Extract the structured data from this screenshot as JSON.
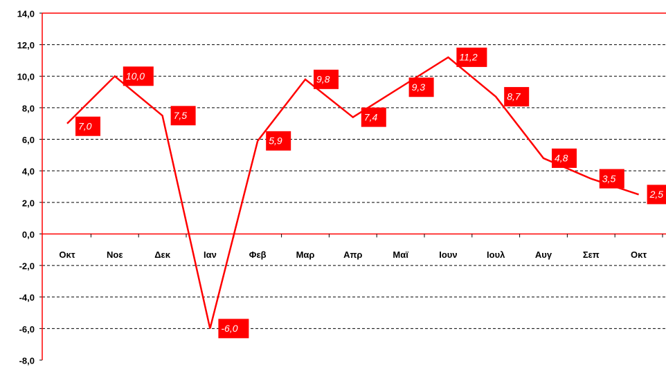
{
  "chart_data": {
    "type": "line",
    "categories": [
      "Οκτ",
      "Νοε",
      "Δεκ",
      "Ιαν",
      "Φεβ",
      "Μαρ",
      "Απρ",
      "Μαϊ",
      "Ιουν",
      "Ιουλ",
      "Αυγ",
      "Σεπ",
      "Οκτ"
    ],
    "series": [
      {
        "name": null,
        "color": "#ff0000",
        "values": [
          7.0,
          10.0,
          7.5,
          -6.0,
          5.9,
          9.8,
          7.4,
          9.3,
          11.2,
          8.7,
          4.8,
          3.5,
          2.5
        ],
        "value_labels": [
          "7,0",
          "10,0",
          "7,5",
          "-6,0",
          "5,9",
          "9,8",
          "7,4",
          "9,3",
          "11,2",
          "8,7",
          "4,8",
          "3,5",
          "2,5"
        ]
      }
    ],
    "ylim": [
      -8,
      14
    ],
    "yticks": [
      {
        "value": -8,
        "label": "-8,0"
      },
      {
        "value": -6,
        "label": "-6,0"
      },
      {
        "value": -4,
        "label": "-4,0"
      },
      {
        "value": -2,
        "label": "-2,0"
      },
      {
        "value": 0,
        "label": "0,0"
      },
      {
        "value": 2,
        "label": "2,0"
      },
      {
        "value": 4,
        "label": "4,0"
      },
      {
        "value": 6,
        "label": "6,0"
      },
      {
        "value": 8,
        "label": "8,0"
      },
      {
        "value": 10,
        "label": "10,0"
      },
      {
        "value": 12,
        "label": "12,0"
      },
      {
        "value": 14,
        "label": "14,0"
      }
    ],
    "grid": true
  }
}
